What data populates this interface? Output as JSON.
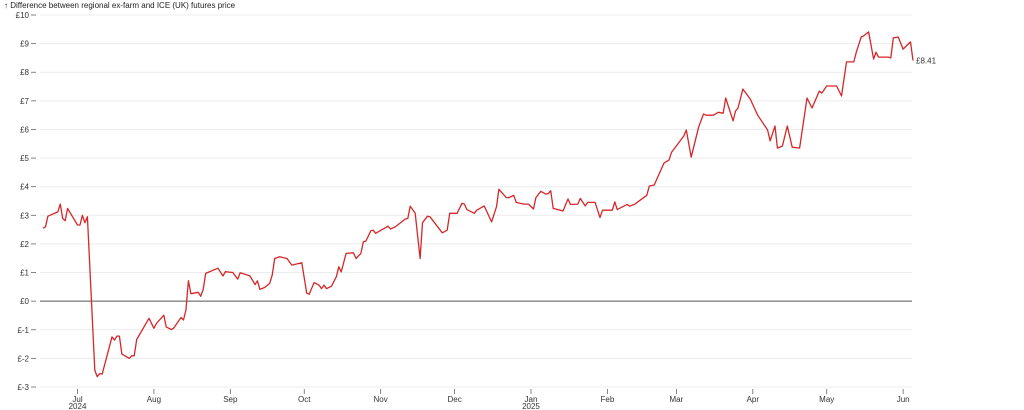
{
  "chart_data": {
    "type": "line",
    "title": "↑ Difference between regional ex-farm and ICE (UK) futures price",
    "ylabel": "Difference between regional ex-farm and ICE (UK) futures price",
    "ylim": [
      -3,
      10
    ],
    "xlim": [
      "2024-06-17",
      "2025-06-05"
    ],
    "grid": "horizontal",
    "line_color": "#d62728",
    "zero_line_color": "#555555",
    "y_ticks": [
      {
        "value": 10,
        "label": "£10"
      },
      {
        "value": 9,
        "label": "£9"
      },
      {
        "value": 8,
        "label": "£8"
      },
      {
        "value": 7,
        "label": "£7"
      },
      {
        "value": 6,
        "label": "£6"
      },
      {
        "value": 5,
        "label": "£5"
      },
      {
        "value": 4,
        "label": "£4"
      },
      {
        "value": 3,
        "label": "£3"
      },
      {
        "value": 2,
        "label": "£2"
      },
      {
        "value": 1,
        "label": "£1"
      },
      {
        "value": 0,
        "label": "£0"
      },
      {
        "value": -1,
        "label": "£-1"
      },
      {
        "value": -2,
        "label": "£-2"
      },
      {
        "value": -3,
        "label": "£-3"
      }
    ],
    "x_ticks": [
      {
        "date": "2024-07-01",
        "label": "Jul",
        "year": "2024"
      },
      {
        "date": "2024-08-01",
        "label": "Aug"
      },
      {
        "date": "2024-09-01",
        "label": "Sep"
      },
      {
        "date": "2024-10-01",
        "label": "Oct"
      },
      {
        "date": "2024-11-01",
        "label": "Nov"
      },
      {
        "date": "2024-12-01",
        "label": "Dec"
      },
      {
        "date": "2025-01-01",
        "label": "Jan",
        "year": "2025"
      },
      {
        "date": "2025-02-01",
        "label": "Feb"
      },
      {
        "date": "2025-03-01",
        "label": "Mar"
      },
      {
        "date": "2025-04-01",
        "label": "Apr"
      },
      {
        "date": "2025-05-01",
        "label": "May"
      },
      {
        "date": "2025-06-01",
        "label": "Jun"
      }
    ],
    "end_label": "£8.41",
    "series": [
      {
        "x": [
          "2024-06-17",
          "2024-06-18",
          "2024-06-19",
          "2024-06-23",
          "2024-06-24",
          "2024-06-25",
          "2024-06-26",
          "2024-06-27",
          "2024-07-01",
          "2024-07-02",
          "2024-07-03",
          "2024-07-04",
          "2024-07-05",
          "2024-07-08",
          "2024-07-09",
          "2024-07-10",
          "2024-07-11",
          "2024-07-15",
          "2024-07-16",
          "2024-07-17",
          "2024-07-18",
          "2024-07-19",
          "2024-07-22",
          "2024-07-23",
          "2024-07-24",
          "2024-07-25",
          "2024-07-30",
          "2024-08-01",
          "2024-08-02",
          "2024-08-05",
          "2024-08-06",
          "2024-08-08",
          "2024-08-09",
          "2024-08-12",
          "2024-08-13",
          "2024-08-14",
          "2024-08-15",
          "2024-08-16",
          "2024-08-19",
          "2024-08-20",
          "2024-08-21",
          "2024-08-22",
          "2024-08-27",
          "2024-08-29",
          "2024-08-30",
          "2024-09-02",
          "2024-09-04",
          "2024-09-05",
          "2024-09-08",
          "2024-09-09",
          "2024-09-11",
          "2024-09-12",
          "2024-09-13",
          "2024-09-15",
          "2024-09-17",
          "2024-09-18",
          "2024-09-19",
          "2024-09-21",
          "2024-09-24",
          "2024-09-25",
          "2024-09-26",
          "2024-09-30",
          "2024-10-02",
          "2024-10-03",
          "2024-10-05",
          "2024-10-07",
          "2024-10-08",
          "2024-10-09",
          "2024-10-10",
          "2024-10-12",
          "2024-10-14",
          "2024-10-15",
          "2024-10-16",
          "2024-10-18",
          "2024-10-21",
          "2024-10-22",
          "2024-10-24",
          "2024-10-25",
          "2024-10-26",
          "2024-10-28",
          "2024-10-29",
          "2024-10-30",
          "2024-11-04",
          "2024-11-05",
          "2024-11-07",
          "2024-11-11",
          "2024-11-12",
          "2024-11-13",
          "2024-11-15",
          "2024-11-17",
          "2024-11-18",
          "2024-11-20",
          "2024-11-21",
          "2024-11-26",
          "2024-11-28",
          "2024-11-29",
          "2024-12-02",
          "2024-12-04",
          "2024-12-05",
          "2024-12-06",
          "2024-12-09",
          "2024-12-10",
          "2024-12-13",
          "2024-12-16",
          "2024-12-18",
          "2024-12-19",
          "2024-12-22",
          "2024-12-23",
          "2024-12-25",
          "2024-12-26",
          "2024-12-29",
          "2024-12-31",
          "2025-01-02",
          "2025-01-03",
          "2025-01-05",
          "2025-01-07",
          "2025-01-08",
          "2025-01-09",
          "2025-01-10",
          "2025-01-14",
          "2025-01-16",
          "2025-01-17",
          "2025-01-20",
          "2025-01-21",
          "2025-01-23",
          "2025-01-24",
          "2025-01-27",
          "2025-01-29",
          "2025-01-30",
          "2025-02-03",
          "2025-02-04",
          "2025-02-05",
          "2025-02-09",
          "2025-02-10",
          "2025-02-12",
          "2025-02-14",
          "2025-02-17",
          "2025-02-18",
          "2025-02-20",
          "2025-02-23",
          "2025-02-24",
          "2025-02-26",
          "2025-02-27",
          "2025-03-04",
          "2025-03-05",
          "2025-03-07",
          "2025-03-10",
          "2025-03-12",
          "2025-03-13",
          "2025-03-16",
          "2025-03-18",
          "2025-03-20",
          "2025-03-21",
          "2025-03-24",
          "2025-03-25",
          "2025-03-26",
          "2025-03-28",
          "2025-03-31",
          "2025-04-02",
          "2025-04-03",
          "2025-04-07",
          "2025-04-08",
          "2025-04-10",
          "2025-04-11",
          "2025-04-13",
          "2025-04-15",
          "2025-04-17",
          "2025-04-20",
          "2025-04-23",
          "2025-04-25",
          "2025-04-28",
          "2025-04-29",
          "2025-05-01",
          "2025-05-05",
          "2025-05-07",
          "2025-05-09",
          "2025-05-12",
          "2025-05-13",
          "2025-05-15",
          "2025-05-16",
          "2025-05-18",
          "2025-05-20",
          "2025-05-21",
          "2025-05-22",
          "2025-05-26",
          "2025-05-27",
          "2025-05-28",
          "2025-05-30",
          "2025-06-01",
          "2025-06-04",
          "2025-06-05"
        ],
        "values": [
          2.55,
          2.6,
          2.97,
          3.12,
          3.39,
          2.89,
          2.81,
          3.24,
          2.66,
          2.66,
          3.0,
          2.74,
          2.95,
          -2.41,
          -2.64,
          -2.53,
          -2.55,
          -1.25,
          -1.36,
          -1.22,
          -1.22,
          -1.85,
          -2.0,
          -1.91,
          -1.91,
          -1.34,
          -0.6,
          -0.95,
          -0.78,
          -0.49,
          -0.9,
          -0.99,
          -0.95,
          -0.57,
          -0.66,
          -0.31,
          0.71,
          0.26,
          0.31,
          0.17,
          0.41,
          0.97,
          1.15,
          0.88,
          1.03,
          1.0,
          0.77,
          0.99,
          0.91,
          0.88,
          0.58,
          0.71,
          0.41,
          0.48,
          0.62,
          0.91,
          1.49,
          1.55,
          1.49,
          1.37,
          1.26,
          1.34,
          0.28,
          0.24,
          0.65,
          0.56,
          0.44,
          0.56,
          0.44,
          0.52,
          0.85,
          1.2,
          1.02,
          1.67,
          1.69,
          1.49,
          1.67,
          2.08,
          2.1,
          2.46,
          2.48,
          2.37,
          2.62,
          2.52,
          2.6,
          2.87,
          2.89,
          3.32,
          3.07,
          1.49,
          2.74,
          2.97,
          2.95,
          2.39,
          2.48,
          3.07,
          3.07,
          3.42,
          3.39,
          3.2,
          3.07,
          3.18,
          3.33,
          2.77,
          3.3,
          3.91,
          3.62,
          3.62,
          3.7,
          3.45,
          3.39,
          3.39,
          3.22,
          3.62,
          3.84,
          3.74,
          3.76,
          3.86,
          3.24,
          3.15,
          3.57,
          3.38,
          3.39,
          3.59,
          3.33,
          3.45,
          3.45,
          2.92,
          3.18,
          3.18,
          3.47,
          3.2,
          3.38,
          3.32,
          3.38,
          3.51,
          3.7,
          4.02,
          4.06,
          4.64,
          4.83,
          4.93,
          5.2,
          5.77,
          5.98,
          5.03,
          6.08,
          6.54,
          6.5,
          6.5,
          6.6,
          6.57,
          7.1,
          6.3,
          6.64,
          6.75,
          7.41,
          7.06,
          6.68,
          6.5,
          5.98,
          5.6,
          6.12,
          5.35,
          5.42,
          6.12,
          5.38,
          5.35,
          7.1,
          6.75,
          7.34,
          7.27,
          7.52,
          7.52,
          7.17,
          8.36,
          8.36,
          8.7,
          9.23,
          9.27,
          9.41,
          8.46,
          8.7,
          8.53,
          8.53,
          8.5,
          9.2,
          9.23,
          8.81,
          9.06,
          8.41
        ]
      }
    ]
  }
}
